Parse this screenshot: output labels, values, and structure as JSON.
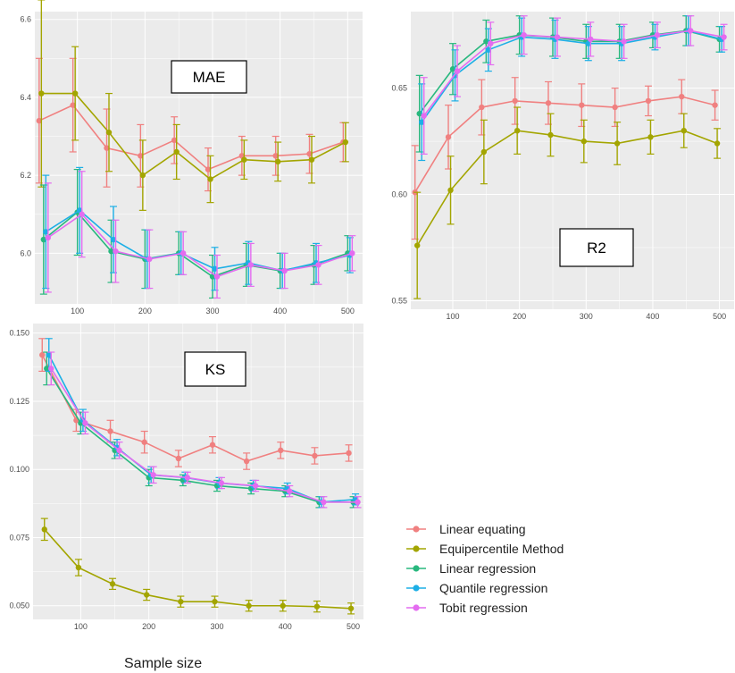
{
  "chart_data": [
    {
      "id": "mae",
      "type": "line",
      "title": "MAE",
      "x": [
        50,
        100,
        150,
        200,
        250,
        300,
        350,
        400,
        450,
        500
      ],
      "xticks": [
        100,
        200,
        300,
        400,
        500
      ],
      "yticks": [
        6.0,
        6.2,
        6.4,
        6.6
      ],
      "ylim": [
        5.87,
        6.62
      ],
      "xlim": [
        37,
        522
      ],
      "grid": true,
      "series": [
        {
          "name": "Linear equating",
          "values": [
            6.34,
            6.38,
            6.27,
            6.25,
            6.29,
            6.215,
            6.25,
            6.25,
            6.255,
            6.285
          ],
          "err": [
            0.16,
            0.12,
            0.1,
            0.08,
            0.06,
            0.055,
            0.05,
            0.05,
            0.05,
            0.05
          ]
        },
        {
          "name": "Equipercentile Method",
          "values": [
            6.41,
            6.41,
            6.31,
            6.2,
            6.26,
            6.19,
            6.24,
            6.235,
            6.24,
            6.285
          ],
          "err": [
            0.24,
            0.12,
            0.1,
            0.09,
            0.07,
            0.06,
            0.05,
            0.05,
            0.06,
            0.05
          ]
        },
        {
          "name": "Linear regression",
          "values": [
            6.035,
            6.105,
            6.005,
            5.985,
            6.0,
            5.94,
            5.97,
            5.955,
            5.97,
            6.0
          ],
          "err": [
            0.14,
            0.11,
            0.08,
            0.075,
            0.055,
            0.055,
            0.055,
            0.045,
            0.05,
            0.045
          ]
        },
        {
          "name": "Quantile regression",
          "values": [
            6.055,
            6.11,
            6.035,
            5.985,
            6.0,
            5.96,
            5.975,
            5.955,
            5.975,
            5.995
          ],
          "err": [
            0.145,
            0.11,
            0.085,
            0.075,
            0.055,
            0.055,
            0.055,
            0.045,
            0.05,
            0.045
          ]
        },
        {
          "name": "Tobit regression",
          "values": [
            6.04,
            6.1,
            6.005,
            5.985,
            6.0,
            5.94,
            5.97,
            5.955,
            5.97,
            6.0
          ],
          "err": [
            0.14,
            0.11,
            0.08,
            0.075,
            0.055,
            0.055,
            0.055,
            0.045,
            0.05,
            0.045
          ]
        }
      ]
    },
    {
      "id": "r2",
      "type": "line",
      "title": "R2",
      "x": [
        50,
        100,
        150,
        200,
        250,
        300,
        350,
        400,
        450,
        500
      ],
      "xticks": [
        100,
        200,
        300,
        400,
        500
      ],
      "yticks": [
        0.55,
        0.6,
        0.65
      ],
      "ytick_labels": [
        "0.55",
        "0.60",
        "0.65"
      ],
      "ylim": [
        0.546,
        0.686
      ],
      "xlim": [
        37,
        522
      ],
      "grid": true,
      "series": [
        {
          "name": "Linear equating",
          "values": [
            0.601,
            0.627,
            0.641,
            0.644,
            0.643,
            0.642,
            0.641,
            0.644,
            0.646,
            0.642
          ],
          "err": [
            0.022,
            0.015,
            0.013,
            0.011,
            0.01,
            0.01,
            0.009,
            0.007,
            0.008,
            0.007
          ]
        },
        {
          "name": "Equipercentile Method",
          "values": [
            0.576,
            0.602,
            0.62,
            0.63,
            0.628,
            0.625,
            0.624,
            0.627,
            0.63,
            0.624
          ],
          "err": [
            0.025,
            0.016,
            0.015,
            0.011,
            0.01,
            0.01,
            0.01,
            0.008,
            0.008,
            0.007
          ]
        },
        {
          "name": "Linear regression",
          "values": [
            0.638,
            0.659,
            0.672,
            0.675,
            0.674,
            0.672,
            0.672,
            0.675,
            0.677,
            0.673
          ],
          "err": [
            0.018,
            0.012,
            0.01,
            0.009,
            0.009,
            0.008,
            0.008,
            0.006,
            0.007,
            0.006
          ]
        },
        {
          "name": "Quantile regression",
          "values": [
            0.634,
            0.656,
            0.668,
            0.674,
            0.673,
            0.671,
            0.671,
            0.674,
            0.677,
            0.673
          ],
          "err": [
            0.018,
            0.012,
            0.01,
            0.009,
            0.009,
            0.008,
            0.008,
            0.006,
            0.007,
            0.006
          ]
        },
        {
          "name": "Tobit regression",
          "values": [
            0.637,
            0.658,
            0.671,
            0.675,
            0.674,
            0.673,
            0.672,
            0.675,
            0.677,
            0.674
          ],
          "err": [
            0.018,
            0.012,
            0.01,
            0.009,
            0.009,
            0.008,
            0.008,
            0.006,
            0.007,
            0.006
          ]
        }
      ]
    },
    {
      "id": "ks",
      "type": "line",
      "title": "KS",
      "x": [
        50,
        100,
        150,
        200,
        250,
        300,
        350,
        400,
        450,
        500
      ],
      "xticks": [
        100,
        200,
        300,
        400,
        500
      ],
      "yticks": [
        0.05,
        0.075,
        0.1,
        0.125,
        0.15
      ],
      "ytick_labels": [
        "0.050",
        "0.075",
        "0.100",
        "0.125",
        "0.150"
      ],
      "ylim": [
        0.045,
        0.1535
      ],
      "xlim": [
        30,
        515
      ],
      "grid": true,
      "series": [
        {
          "name": "Linear equating",
          "values": [
            0.142,
            0.118,
            0.114,
            0.11,
            0.104,
            0.109,
            0.103,
            0.107,
            0.105,
            0.106
          ],
          "err": [
            0.006,
            0.004,
            0.004,
            0.004,
            0.003,
            0.003,
            0.003,
            0.003,
            0.003,
            0.003
          ]
        },
        {
          "name": "Equipercentile Method",
          "values": [
            0.078,
            0.064,
            0.058,
            0.054,
            0.0515,
            0.0515,
            0.05,
            0.05,
            0.0497,
            0.049
          ],
          "err": [
            0.004,
            0.003,
            0.002,
            0.002,
            0.002,
            0.002,
            0.002,
            0.002,
            0.002,
            0.002
          ]
        },
        {
          "name": "Linear regression",
          "values": [
            0.137,
            0.117,
            0.107,
            0.097,
            0.096,
            0.094,
            0.093,
            0.092,
            0.088,
            0.088
          ],
          "err": [
            0.006,
            0.004,
            0.003,
            0.003,
            0.002,
            0.002,
            0.002,
            0.002,
            0.002,
            0.002
          ]
        },
        {
          "name": "Quantile regression",
          "values": [
            0.142,
            0.118,
            0.108,
            0.098,
            0.097,
            0.095,
            0.094,
            0.093,
            0.088,
            0.089
          ],
          "err": [
            0.006,
            0.004,
            0.003,
            0.003,
            0.002,
            0.002,
            0.002,
            0.002,
            0.002,
            0.002
          ]
        },
        {
          "name": "Tobit regression",
          "values": [
            0.137,
            0.117,
            0.107,
            0.098,
            0.097,
            0.095,
            0.094,
            0.092,
            0.088,
            0.088
          ],
          "err": [
            0.006,
            0.004,
            0.003,
            0.003,
            0.002,
            0.002,
            0.002,
            0.002,
            0.002,
            0.002
          ]
        }
      ]
    }
  ],
  "series_colors": {
    "Linear equating": "#F08080",
    "Equipercentile Method": "#A3A500",
    "Linear regression": "#28B87E",
    "Quantile regression": "#1DAFE6",
    "Tobit regression": "#E46CF0"
  },
  "legend": {
    "position": "bottom-right",
    "items": [
      "Linear equating",
      "Equipercentile Method",
      "Linear regression",
      "Quantile regression",
      "Tobit regression"
    ]
  },
  "xlabel": "Sample size",
  "panel_bg": "#EBEBEB",
  "grid_color": "#FFFFFF"
}
